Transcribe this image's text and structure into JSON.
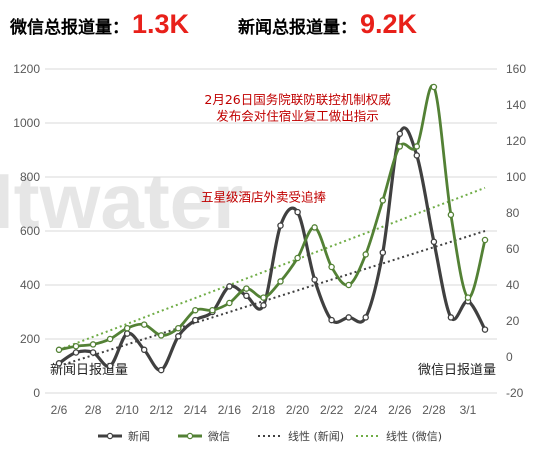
{
  "header": {
    "wechat_label": "微信总报道量：",
    "wechat_value": "1.3K",
    "news_label": "新闻总报道量：",
    "news_value": "9.2K"
  },
  "watermark": "Itwater",
  "chart_data": {
    "type": "line",
    "title": "",
    "x": [
      "2/6",
      "2/7",
      "2/8",
      "2/9",
      "2/10",
      "2/11",
      "2/12",
      "2/13",
      "2/14",
      "2/15",
      "2/16",
      "2/17",
      "2/18",
      "2/19",
      "2/20",
      "2/21",
      "2/22",
      "2/23",
      "2/24",
      "2/25",
      "2/26",
      "2/27",
      "2/28",
      "2/29",
      "3/1",
      "3/2"
    ],
    "x_tick_labels": [
      "2/6",
      "2/8",
      "2/10",
      "2/12",
      "2/14",
      "2/16",
      "2/18",
      "2/20",
      "2/22",
      "2/24",
      "2/26",
      "2/28",
      "3/1"
    ],
    "y_left": {
      "min": 0,
      "max": 1200,
      "ticks": [
        "0",
        "200",
        "400",
        "600",
        "800",
        "1000",
        "1200"
      ],
      "label": "新闻日报道量"
    },
    "y_right": {
      "min": -20,
      "max": 160,
      "ticks": [
        "-20",
        "0",
        "20",
        "40",
        "60",
        "80",
        "100",
        "120",
        "140",
        "160"
      ],
      "label": "微信日报道量"
    },
    "series": [
      {
        "name": "新闻",
        "axis": "left",
        "color": "#404040",
        "values": [
          110,
          150,
          150,
          100,
          220,
          160,
          85,
          210,
          270,
          300,
          395,
          360,
          325,
          620,
          670,
          420,
          270,
          280,
          280,
          520,
          960,
          880,
          560,
          280,
          340,
          235
        ]
      },
      {
        "name": "微信",
        "axis": "right",
        "color": "#538135",
        "values": [
          4,
          6,
          7,
          10,
          16,
          18,
          12,
          16,
          26,
          26,
          30,
          38,
          33,
          42,
          55,
          72,
          50,
          40,
          57,
          87,
          117,
          117,
          150,
          79,
          33,
          65
        ]
      },
      {
        "name": "线性 (新闻)",
        "axis": "left",
        "color": "#404040",
        "style": "dotted",
        "trend_of": "新闻",
        "values": [
          100,
          120,
          140,
          160,
          180,
          200,
          220,
          240,
          260,
          280,
          300,
          320,
          340,
          360,
          380,
          400,
          420,
          440,
          460,
          480,
          500,
          520,
          540,
          560,
          580,
          600
        ]
      },
      {
        "name": "线性 (微信)",
        "axis": "right",
        "color": "#70ad47",
        "style": "dotted",
        "trend_of": "微信",
        "values": [
          4,
          7.6,
          11.2,
          14.8,
          18.4,
          22,
          25.6,
          29.2,
          32.8,
          36.4,
          40,
          43.6,
          47.2,
          50.8,
          54.4,
          58,
          61.6,
          65.2,
          68.8,
          72.4,
          76,
          79.6,
          83.2,
          86.8,
          90.4,
          94
        ]
      }
    ],
    "annotations": [
      {
        "text": "2月26日国务院联防联控机制权威",
        "index": 14,
        "axis": "left",
        "value": 1070
      },
      {
        "text": "发布会对住宿业复工做出指示",
        "index": 14,
        "axis": "left",
        "value": 1010
      },
      {
        "text": "五星级酒店外卖受追捧",
        "index": 12,
        "axis": "left",
        "value": 710
      }
    ],
    "grid": true,
    "legend_position": "bottom"
  }
}
